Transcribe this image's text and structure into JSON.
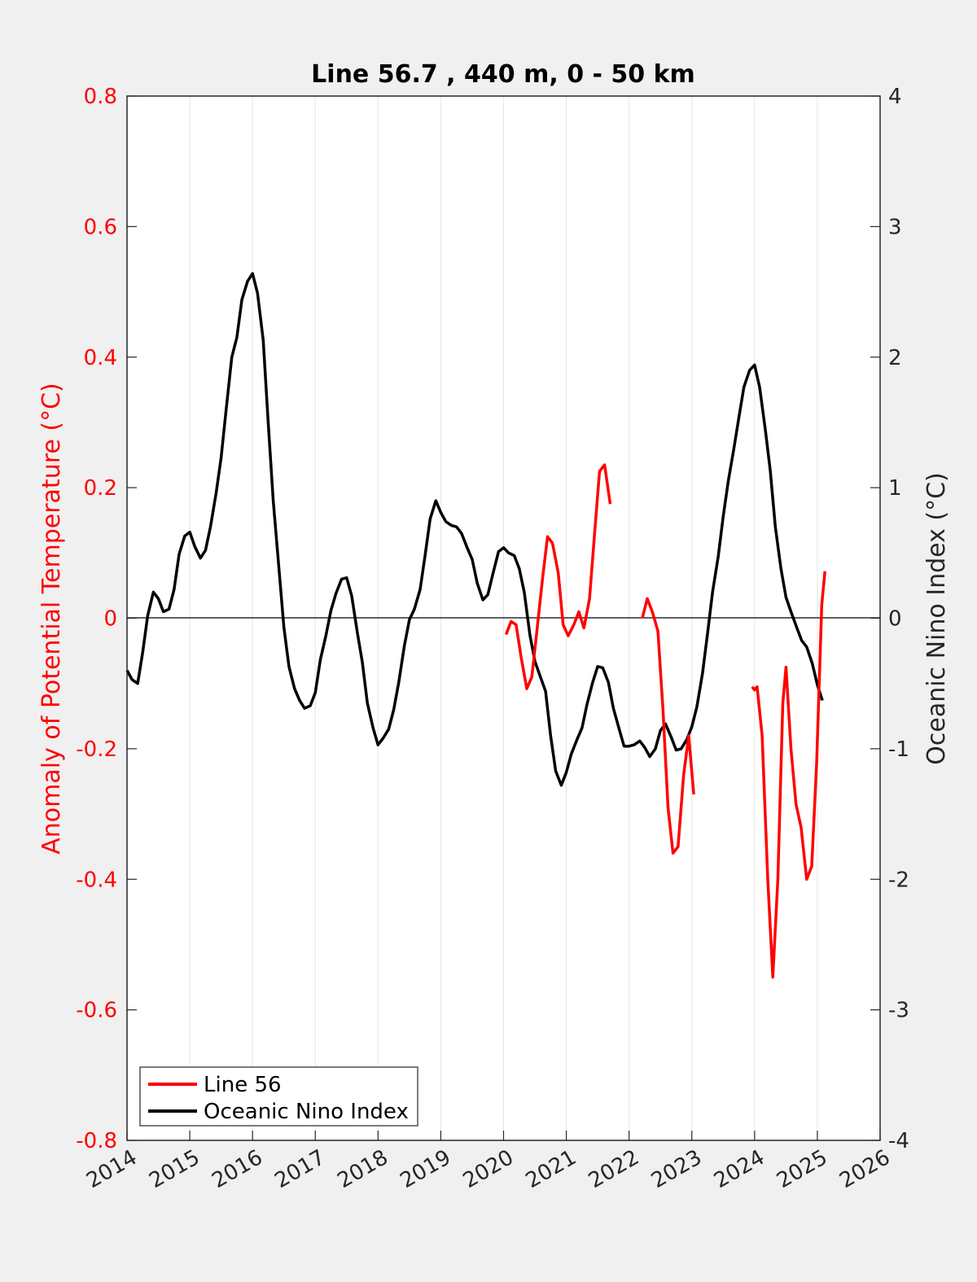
{
  "chart_data": {
    "type": "line",
    "title": "Line 56.7 , 440 m, 0 - 50 km",
    "ylabel_left": "Anomaly of Potential Temperature (°C)",
    "ylabel_right": "Oceanic Nino Index (°C)",
    "xlim": [
      2014,
      2026
    ],
    "ylim_left": [
      -0.8,
      0.8
    ],
    "ylim_right": [
      -4,
      4
    ],
    "x_ticks": [
      "2014",
      "2015",
      "2016",
      "2017",
      "2018",
      "2019",
      "2020",
      "2021",
      "2022",
      "2023",
      "2024",
      "2025",
      "2026"
    ],
    "y_ticks_left": [
      "-0.8",
      "-0.6",
      "-0.4",
      "-0.2",
      "0",
      "0.2",
      "0.4",
      "0.6",
      "0.8"
    ],
    "y_ticks_right": [
      "-4",
      "-3",
      "-2",
      "-1",
      "0",
      "1",
      "2",
      "3",
      "4"
    ],
    "grid": "vertical",
    "legend_position": "bottom-left",
    "colors": {
      "line56": "#ff0000",
      "oni": "#000000",
      "left_axis": "#ff0000",
      "right_axis": "#262626"
    },
    "series": [
      {
        "name": "Line 56",
        "axis": "left",
        "segments": [
          [
            [
              2020.04,
              -0.025
            ],
            [
              2020.12,
              -0.005
            ],
            [
              2020.2,
              -0.01
            ],
            [
              2020.28,
              -0.06
            ],
            [
              2020.37,
              -0.108
            ],
            [
              2020.45,
              -0.09
            ],
            [
              2020.53,
              -0.02
            ],
            [
              2020.62,
              0.06
            ],
            [
              2020.7,
              0.125
            ],
            [
              2020.78,
              0.115
            ],
            [
              2020.87,
              0.07
            ],
            [
              2020.95,
              -0.01
            ],
            [
              2021.03,
              -0.027
            ],
            [
              2021.12,
              -0.01
            ],
            [
              2021.2,
              0.01
            ],
            [
              2021.28,
              -0.015
            ],
            [
              2021.37,
              0.03
            ],
            [
              2021.45,
              0.13
            ],
            [
              2021.53,
              0.225
            ],
            [
              2021.61,
              0.235
            ],
            [
              2021.7,
              0.175
            ]
          ],
          [
            [
              2022.21,
              0.0
            ],
            [
              2022.29,
              0.03
            ],
            [
              2022.37,
              0.01
            ],
            [
              2022.46,
              -0.02
            ],
            [
              2022.54,
              -0.14
            ],
            [
              2022.62,
              -0.29
            ],
            [
              2022.7,
              -0.36
            ],
            [
              2022.78,
              -0.35
            ],
            [
              2022.87,
              -0.24
            ],
            [
              2022.95,
              -0.18
            ],
            [
              2023.03,
              -0.27
            ]
          ],
          [
            [
              2023.96,
              -0.105
            ],
            [
              2024.0,
              -0.11
            ],
            [
              2024.04,
              -0.105
            ],
            [
              2024.12,
              -0.18
            ],
            [
              2024.21,
              -0.4
            ],
            [
              2024.29,
              -0.55
            ],
            [
              2024.37,
              -0.4
            ],
            [
              2024.45,
              -0.13
            ],
            [
              2024.5,
              -0.075
            ],
            [
              2024.58,
              -0.2
            ],
            [
              2024.66,
              -0.285
            ],
            [
              2024.74,
              -0.32
            ],
            [
              2024.83,
              -0.4
            ],
            [
              2024.91,
              -0.38
            ],
            [
              2024.99,
              -0.22
            ],
            [
              2025.07,
              0.02
            ],
            [
              2025.12,
              0.072
            ]
          ]
        ]
      },
      {
        "name": "Oceanic Nino Index",
        "axis": "right",
        "points": [
          [
            2014.0,
            -0.4
          ],
          [
            2014.08,
            -0.47
          ],
          [
            2014.17,
            -0.5
          ],
          [
            2014.25,
            -0.26
          ],
          [
            2014.33,
            0.02
          ],
          [
            2014.42,
            0.2
          ],
          [
            2014.5,
            0.15
          ],
          [
            2014.58,
            0.05
          ],
          [
            2014.67,
            0.07
          ],
          [
            2014.75,
            0.22
          ],
          [
            2014.83,
            0.49
          ],
          [
            2014.92,
            0.63
          ],
          [
            2015.0,
            0.66
          ],
          [
            2015.08,
            0.55
          ],
          [
            2015.17,
            0.46
          ],
          [
            2015.25,
            0.52
          ],
          [
            2015.33,
            0.7
          ],
          [
            2015.42,
            0.96
          ],
          [
            2015.5,
            1.23
          ],
          [
            2015.58,
            1.6
          ],
          [
            2015.67,
            2.0
          ],
          [
            2015.75,
            2.15
          ],
          [
            2015.83,
            2.44
          ],
          [
            2015.92,
            2.58
          ],
          [
            2016.0,
            2.64
          ],
          [
            2016.08,
            2.49
          ],
          [
            2016.17,
            2.13
          ],
          [
            2016.25,
            1.5
          ],
          [
            2016.33,
            0.9
          ],
          [
            2016.42,
            0.39
          ],
          [
            2016.5,
            -0.07
          ],
          [
            2016.58,
            -0.37
          ],
          [
            2016.67,
            -0.54
          ],
          [
            2016.75,
            -0.63
          ],
          [
            2016.83,
            -0.69
          ],
          [
            2016.92,
            -0.67
          ],
          [
            2017.0,
            -0.57
          ],
          [
            2017.08,
            -0.32
          ],
          [
            2017.17,
            -0.13
          ],
          [
            2017.25,
            0.06
          ],
          [
            2017.33,
            0.19
          ],
          [
            2017.42,
            0.3
          ],
          [
            2017.5,
            0.31
          ],
          [
            2017.58,
            0.17
          ],
          [
            2017.67,
            -0.11
          ],
          [
            2017.75,
            -0.34
          ],
          [
            2017.83,
            -0.65
          ],
          [
            2017.92,
            -0.84
          ],
          [
            2018.0,
            -0.97
          ],
          [
            2018.08,
            -0.92
          ],
          [
            2018.17,
            -0.85
          ],
          [
            2018.25,
            -0.7
          ],
          [
            2018.33,
            -0.49
          ],
          [
            2018.42,
            -0.21
          ],
          [
            2018.5,
            -0.01
          ],
          [
            2018.58,
            0.07
          ],
          [
            2018.67,
            0.22
          ],
          [
            2018.75,
            0.48
          ],
          [
            2018.83,
            0.76
          ],
          [
            2018.92,
            0.9
          ],
          [
            2019.0,
            0.81
          ],
          [
            2019.08,
            0.74
          ],
          [
            2019.17,
            0.71
          ],
          [
            2019.25,
            0.7
          ],
          [
            2019.33,
            0.65
          ],
          [
            2019.42,
            0.54
          ],
          [
            2019.5,
            0.45
          ],
          [
            2019.58,
            0.27
          ],
          [
            2019.67,
            0.14
          ],
          [
            2019.75,
            0.18
          ],
          [
            2019.83,
            0.34
          ],
          [
            2019.92,
            0.51
          ],
          [
            2020.0,
            0.54
          ],
          [
            2020.08,
            0.5
          ],
          [
            2020.17,
            0.48
          ],
          [
            2020.25,
            0.38
          ],
          [
            2020.33,
            0.2
          ],
          [
            2020.42,
            -0.13
          ],
          [
            2020.5,
            -0.33
          ],
          [
            2020.58,
            -0.44
          ],
          [
            2020.67,
            -0.56
          ],
          [
            2020.75,
            -0.9
          ],
          [
            2020.83,
            -1.17
          ],
          [
            2020.92,
            -1.28
          ],
          [
            2021.0,
            -1.18
          ],
          [
            2021.08,
            -1.04
          ],
          [
            2021.17,
            -0.93
          ],
          [
            2021.25,
            -0.84
          ],
          [
            2021.33,
            -0.66
          ],
          [
            2021.42,
            -0.49
          ],
          [
            2021.5,
            -0.37
          ],
          [
            2021.58,
            -0.38
          ],
          [
            2021.67,
            -0.49
          ],
          [
            2021.75,
            -0.69
          ],
          [
            2021.83,
            -0.83
          ],
          [
            2021.92,
            -0.98
          ],
          [
            2022.0,
            -0.98
          ],
          [
            2022.08,
            -0.97
          ],
          [
            2022.17,
            -0.94
          ],
          [
            2022.25,
            -0.99
          ],
          [
            2022.33,
            -1.06
          ],
          [
            2022.42,
            -1.0
          ],
          [
            2022.5,
            -0.86
          ],
          [
            2022.58,
            -0.81
          ],
          [
            2022.67,
            -0.91
          ],
          [
            2022.75,
            -1.01
          ],
          [
            2022.83,
            -1.0
          ],
          [
            2022.92,
            -0.93
          ],
          [
            2023.0,
            -0.83
          ],
          [
            2023.08,
            -0.68
          ],
          [
            2023.17,
            -0.42
          ],
          [
            2023.25,
            -0.12
          ],
          [
            2023.33,
            0.2
          ],
          [
            2023.42,
            0.47
          ],
          [
            2023.5,
            0.78
          ],
          [
            2023.58,
            1.05
          ],
          [
            2023.67,
            1.3
          ],
          [
            2023.75,
            1.54
          ],
          [
            2023.83,
            1.77
          ],
          [
            2023.92,
            1.9
          ],
          [
            2024.0,
            1.94
          ],
          [
            2024.08,
            1.77
          ],
          [
            2024.17,
            1.45
          ],
          [
            2024.25,
            1.13
          ],
          [
            2024.33,
            0.7
          ],
          [
            2024.42,
            0.38
          ],
          [
            2024.5,
            0.16
          ],
          [
            2024.58,
            0.05
          ],
          [
            2024.67,
            -0.07
          ],
          [
            2024.75,
            -0.17
          ],
          [
            2024.83,
            -0.22
          ],
          [
            2024.92,
            -0.35
          ],
          [
            2025.0,
            -0.51
          ],
          [
            2025.08,
            -0.63
          ]
        ]
      }
    ],
    "legend": [
      "Line 56",
      "Oceanic Nino Index"
    ]
  }
}
